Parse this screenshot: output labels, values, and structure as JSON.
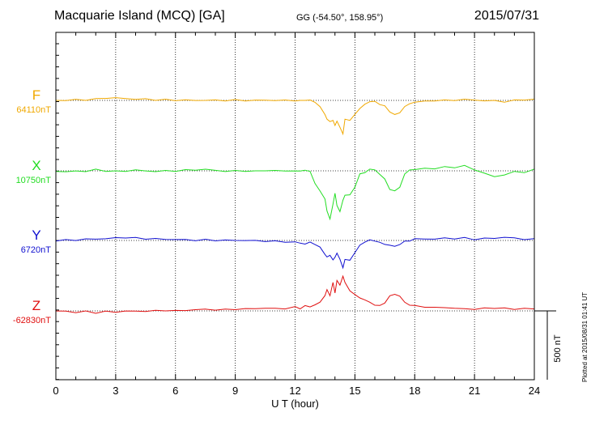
{
  "header": {
    "title": "Macquarie Island (MCQ)  [GA]",
    "coords": "GG (-54.50°, 158.95°)",
    "date": "2015/07/31",
    "plotted": "Plotted at 2015/08/31 01:41 UT"
  },
  "colors": {
    "F": "#f0a800",
    "X": "#22dd22",
    "Y": "#1010d0",
    "Z": "#e01010",
    "frame": "#000000"
  },
  "chart_data": {
    "type": "line",
    "title": "Macquarie Island (MCQ)  [GA]",
    "xlabel": "U T (hour)",
    "ylabel": "",
    "xlim": [
      0,
      24
    ],
    "x_ticks": [
      0,
      3,
      6,
      9,
      12,
      15,
      18,
      21,
      24
    ],
    "grid": true,
    "scale_bar": {
      "label": "500 nT",
      "nT": 500
    },
    "x": [
      0,
      0.5,
      1,
      1.5,
      2,
      2.5,
      3,
      3.5,
      4,
      4.5,
      5,
      5.5,
      6,
      6.5,
      7,
      7.5,
      8,
      8.5,
      9,
      9.5,
      10,
      10.5,
      11,
      11.5,
      12,
      12.25,
      12.5,
      12.75,
      13,
      13.25,
      13.5,
      13.6,
      13.75,
      13.9,
      14,
      14.1,
      14.25,
      14.4,
      14.5,
      14.75,
      15,
      15.25,
      15.5,
      15.75,
      16,
      16.25,
      16.5,
      16.75,
      17,
      17.25,
      17.5,
      17.75,
      18,
      18.5,
      19,
      19.5,
      20,
      20.5,
      21,
      21.5,
      22,
      22.5,
      23,
      23.5,
      24
    ],
    "series": [
      {
        "name": "F",
        "baseline": "64110nT",
        "values": [
          64110,
          64110,
          64115,
          64115,
          64120,
          64130,
          64130,
          64125,
          64120,
          64120,
          64115,
          64115,
          64112,
          64112,
          64110,
          64112,
          64110,
          64110,
          64112,
          64110,
          64110,
          64112,
          64110,
          64110,
          64110,
          64105,
          64115,
          64110,
          64095,
          64060,
          63990,
          63960,
          63930,
          63950,
          63900,
          63940,
          63890,
          63830,
          63960,
          63940,
          64000,
          64040,
          64080,
          64100,
          64100,
          64080,
          64060,
          64020,
          63990,
          64010,
          64060,
          64080,
          64100,
          64100,
          64110,
          64110,
          64110,
          64120,
          64110,
          64110,
          64105,
          64100,
          64110,
          64115,
          64120
        ]
      },
      {
        "name": "X",
        "baseline": "10750nT",
        "values": [
          10750,
          10740,
          10750,
          10745,
          10760,
          10750,
          10745,
          10750,
          10755,
          10750,
          10745,
          10750,
          10750,
          10755,
          10760,
          10760,
          10755,
          10745,
          10750,
          10750,
          10745,
          10755,
          10750,
          10750,
          10750,
          10745,
          10760,
          10740,
          10650,
          10580,
          10520,
          10420,
          10350,
          10480,
          10560,
          10470,
          10410,
          10510,
          10550,
          10550,
          10620,
          10720,
          10740,
          10760,
          10760,
          10720,
          10680,
          10600,
          10580,
          10620,
          10720,
          10760,
          10760,
          10770,
          10770,
          10780,
          10780,
          10790,
          10760,
          10730,
          10700,
          10720,
          10740,
          10740,
          10760
        ]
      },
      {
        "name": "Y",
        "baseline": "6720nT",
        "values": [
          6720,
          6722,
          6724,
          6730,
          6732,
          6735,
          6740,
          6745,
          6740,
          6735,
          6733,
          6730,
          6728,
          6725,
          6722,
          6725,
          6722,
          6720,
          6722,
          6720,
          6718,
          6715,
          6712,
          6710,
          6705,
          6700,
          6690,
          6705,
          6690,
          6660,
          6610,
          6580,
          6600,
          6560,
          6580,
          6620,
          6560,
          6500,
          6560,
          6560,
          6620,
          6680,
          6710,
          6720,
          6720,
          6700,
          6690,
          6680,
          6670,
          6690,
          6710,
          6720,
          6730,
          6735,
          6730,
          6740,
          6735,
          6740,
          6730,
          6735,
          6740,
          6745,
          6740,
          6730,
          6730
        ]
      },
      {
        "name": "Z",
        "baseline": "-62830nT",
        "values": [
          -62830,
          -62835,
          -62840,
          -62835,
          -62845,
          -62835,
          -62840,
          -62830,
          -62835,
          -62830,
          -62830,
          -62825,
          -62830,
          -62825,
          -62820,
          -62818,
          -62820,
          -62820,
          -62815,
          -62815,
          -62810,
          -62808,
          -62810,
          -62810,
          -62800,
          -62808,
          -62790,
          -62795,
          -62780,
          -62760,
          -62700,
          -62660,
          -62700,
          -62600,
          -62680,
          -62580,
          -62620,
          -62540,
          -62600,
          -62660,
          -62700,
          -62720,
          -62740,
          -62760,
          -62780,
          -62790,
          -62760,
          -62710,
          -62690,
          -62710,
          -62760,
          -62780,
          -62790,
          -62795,
          -62805,
          -62800,
          -62810,
          -62812,
          -62815,
          -62810,
          -62805,
          -62810,
          -62815,
          -62810,
          -62815
        ]
      }
    ]
  }
}
